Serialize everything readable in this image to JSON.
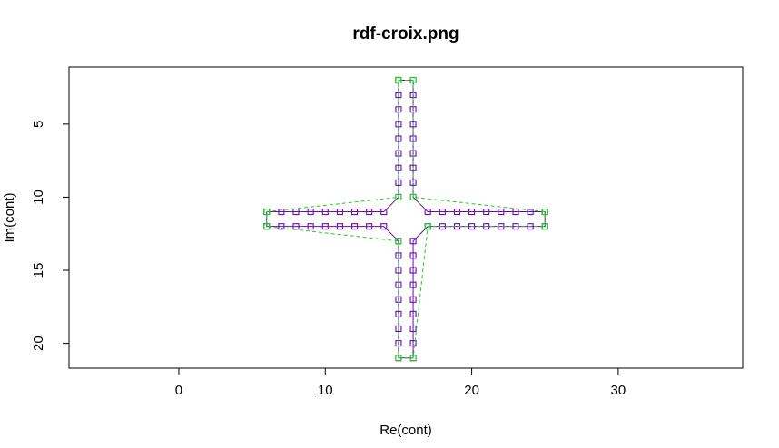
{
  "chart_data": {
    "type": "line",
    "title": "rdf-croix.png",
    "xlabel": "Re(cont)",
    "ylabel": "Im(cont)",
    "xlim": [
      -7.5,
      38.5
    ],
    "ylim": [
      21.7,
      1.1
    ],
    "y_reversed": true,
    "xticks": [
      0,
      10,
      20,
      30
    ],
    "yticks": [
      5,
      10,
      15,
      20
    ],
    "grid": false,
    "series": [
      {
        "color": "#6a0dad",
        "line_style": "solid",
        "marker": "open-square",
        "x": [
          15,
          16,
          16,
          16,
          16,
          16,
          16,
          16,
          16,
          16,
          17,
          18,
          19,
          20,
          21,
          22,
          23,
          24,
          25,
          25,
          24,
          23,
          22,
          21,
          20,
          19,
          18,
          17,
          16,
          16,
          16,
          16,
          16,
          16,
          16,
          16,
          16,
          15,
          15,
          15,
          15,
          15,
          15,
          15,
          15,
          15,
          14,
          13,
          12,
          11,
          10,
          9,
          8,
          7,
          6,
          6,
          7,
          8,
          9,
          10,
          11,
          12,
          13,
          14,
          15,
          15,
          15,
          15,
          15,
          15,
          15,
          15,
          15
        ],
        "y": [
          2,
          2,
          3,
          4,
          5,
          6,
          7,
          8,
          9,
          10,
          11,
          11,
          11,
          11,
          11,
          11,
          11,
          11,
          11,
          12,
          12,
          12,
          12,
          12,
          12,
          12,
          12,
          12,
          13,
          14,
          15,
          16,
          17,
          18,
          19,
          20,
          21,
          21,
          20,
          19,
          18,
          17,
          16,
          15,
          14,
          13,
          12,
          12,
          12,
          12,
          12,
          12,
          12,
          12,
          12,
          11,
          11,
          11,
          11,
          11,
          11,
          11,
          11,
          11,
          10,
          9,
          8,
          7,
          6,
          5,
          4,
          3,
          2
        ]
      },
      {
        "color": "#22cc22",
        "line_style": "dashed",
        "marker": "open-square",
        "x": [
          15,
          16,
          16,
          25,
          25,
          17,
          16,
          15,
          15,
          6,
          6,
          15,
          15
        ],
        "y": [
          2,
          2,
          10,
          11,
          12,
          12,
          21,
          21,
          13,
          12,
          11,
          10,
          2
        ]
      }
    ]
  }
}
